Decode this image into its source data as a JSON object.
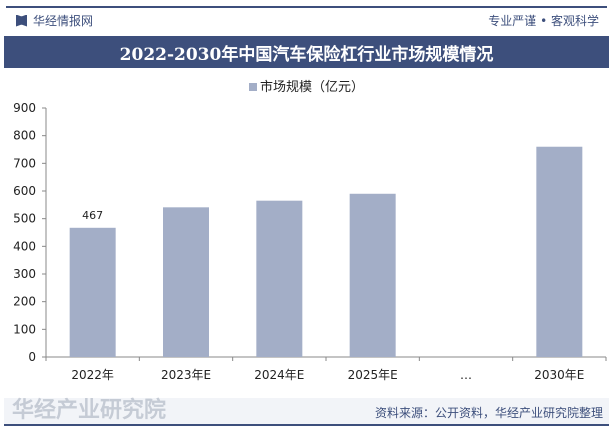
{
  "header": {
    "brand": "华经情报网",
    "slogan": "专业严谨 • 客观科学",
    "title": "2022-2030年中国汽车保险杠行业市场规模情况"
  },
  "footer": {
    "source": "资料来源：公开资料，华经产业研究院整理",
    "watermark": "华经产业研究院",
    "watermark_url": "www.huaon.com"
  },
  "colors": {
    "bar": "#a3aec7",
    "header": "#3d4f7c"
  },
  "chart_data": {
    "type": "bar",
    "title": "2022-2030年中国汽车保险杠行业市场规模情况",
    "legend": [
      "市场规模（亿元）"
    ],
    "legend_position": "top",
    "categories": [
      "2022年",
      "2023年E",
      "2024年E",
      "2025年E",
      "…",
      "2030年E"
    ],
    "series": [
      {
        "name": "市场规模（亿元）",
        "values": [
          467,
          541,
          565,
          590,
          null,
          760
        ]
      }
    ],
    "data_labels": [
      "467",
      null,
      null,
      null,
      null,
      null
    ],
    "ylim": [
      0,
      900
    ],
    "yticks": [
      0,
      100,
      200,
      300,
      400,
      500,
      600,
      700,
      800,
      900
    ],
    "xlabel": "",
    "ylabel": ""
  }
}
